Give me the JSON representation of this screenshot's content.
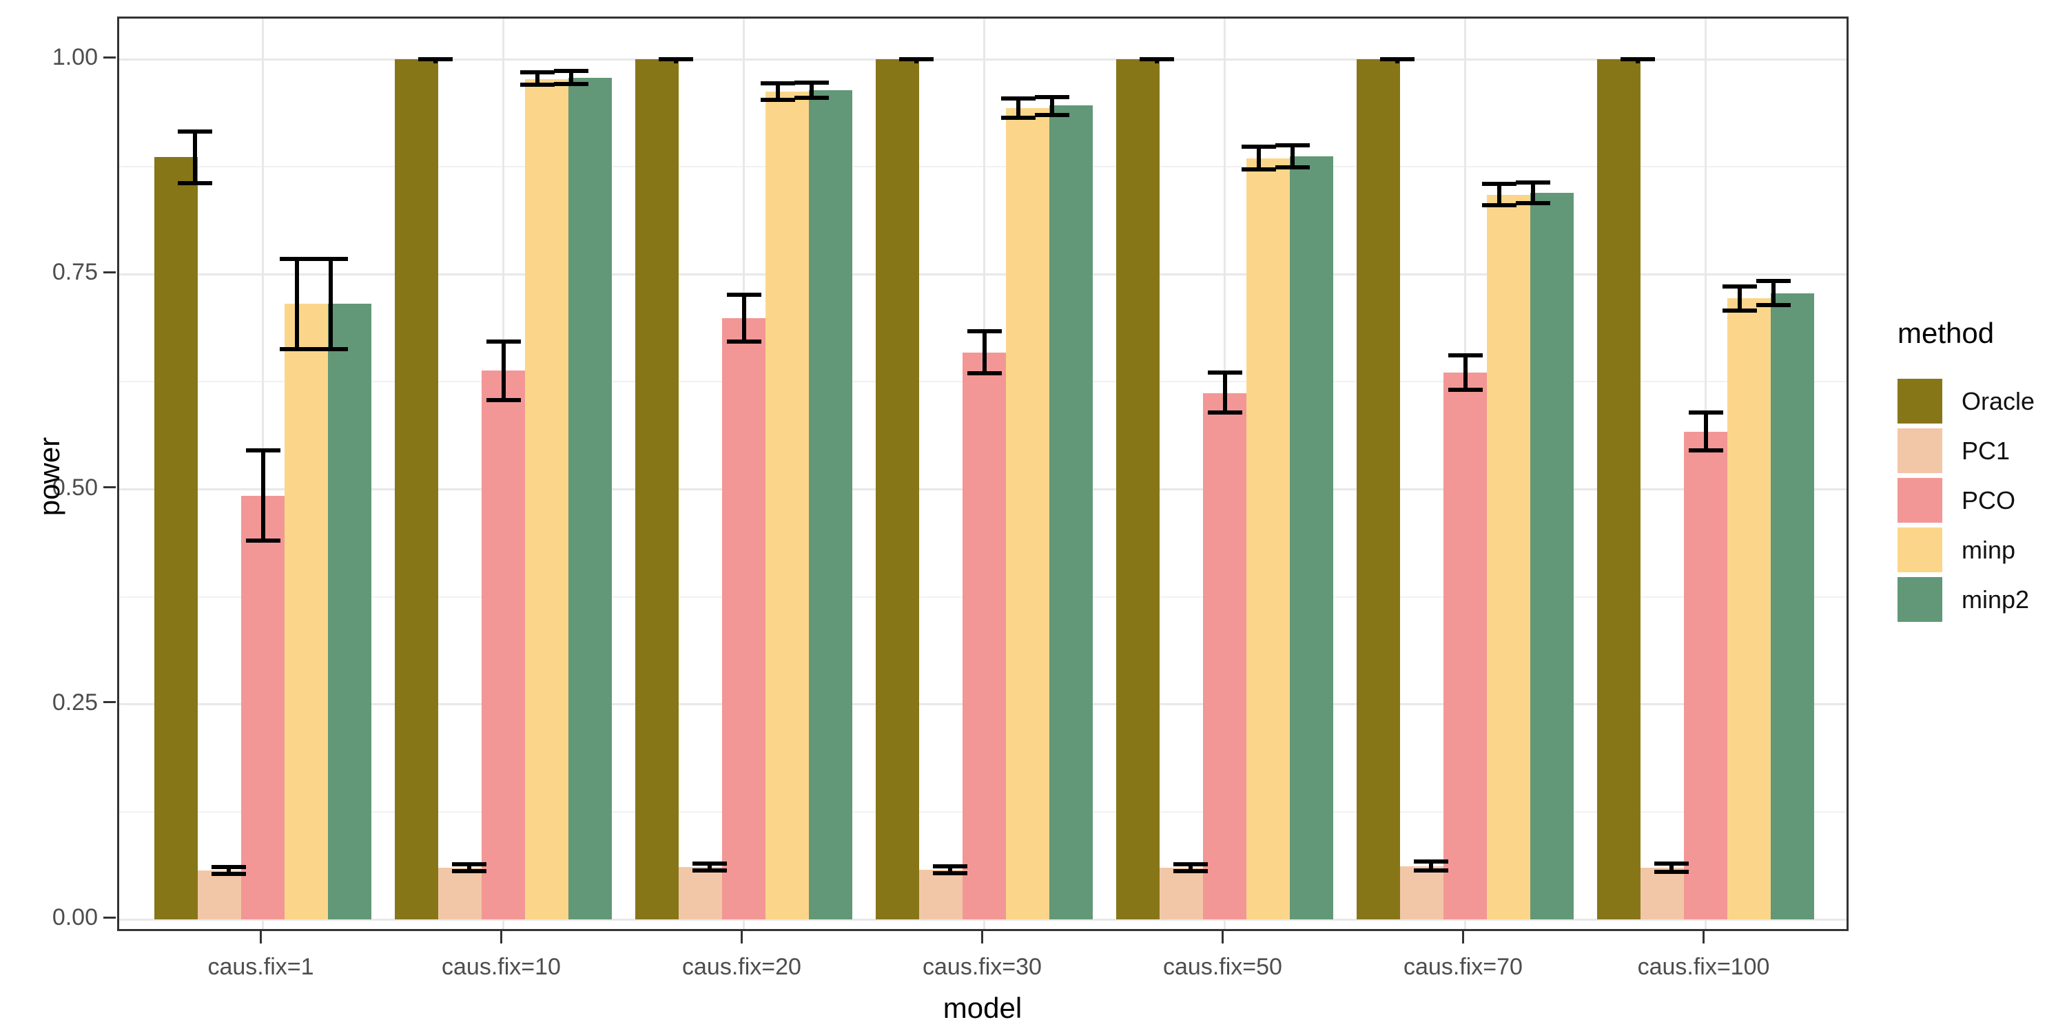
{
  "figure": {
    "kind": "ggplot-grouped-bar-chart-with-error-bars",
    "background": "#ffffff",
    "panel_border_color": "#333333",
    "gridline_major_color": "#e8e8e8",
    "gridline_minor_color": "#f1f1f1",
    "tick_color": "#333333",
    "tick_label_color": "#4d4d4d"
  },
  "chart_data": {
    "type": "bar",
    "title": "",
    "xlabel": "model",
    "ylabel": "power",
    "legend_title": "method",
    "legend_position": "right",
    "grid": "major and minor horizontal, major vertical at category centers",
    "ylim": [
      0,
      1.05
    ],
    "y_ticks": [
      0,
      0.25,
      0.5,
      0.75,
      1
    ],
    "y_tick_labels": [
      "0.00",
      "0.25",
      "0.50",
      "0.75",
      "1.00"
    ],
    "y_minor_ticks": [
      0.125,
      0.375,
      0.625,
      0.875
    ],
    "error_bar_color": "#000000",
    "categories": [
      "caus.fix=1",
      "caus.fix=10",
      "caus.fix=20",
      "caus.fix=30",
      "caus.fix=50",
      "caus.fix=70",
      "caus.fix=100"
    ],
    "series": [
      {
        "name": "Oracle",
        "color": "#877618",
        "values": [
          0.886,
          1.0,
          1.0,
          1.0,
          1.0,
          1.0,
          1.0
        ],
        "error_low": [
          0.856,
          1.0,
          1.0,
          1.0,
          1.0,
          1.0,
          1.0
        ],
        "error_high": [
          0.916,
          1.0,
          1.0,
          1.0,
          1.0,
          1.0,
          1.0
        ]
      },
      {
        "name": "PC1",
        "color": "#F2C7A7",
        "values": [
          0.057,
          0.06,
          0.061,
          0.058,
          0.06,
          0.062,
          0.06
        ],
        "error_low": [
          0.053,
          0.056,
          0.057,
          0.054,
          0.056,
          0.057,
          0.055
        ],
        "error_high": [
          0.061,
          0.064,
          0.065,
          0.062,
          0.064,
          0.067,
          0.065
        ]
      },
      {
        "name": "PCO",
        "color": "#F29795",
        "values": [
          0.492,
          0.638,
          0.699,
          0.659,
          0.612,
          0.636,
          0.567
        ],
        "error_low": [
          0.44,
          0.604,
          0.672,
          0.635,
          0.589,
          0.616,
          0.545
        ],
        "error_high": [
          0.545,
          0.672,
          0.726,
          0.684,
          0.636,
          0.656,
          0.589
        ]
      },
      {
        "name": "minp",
        "color": "#FBD68A",
        "values": [
          0.716,
          0.977,
          0.962,
          0.943,
          0.885,
          0.842,
          0.722
        ],
        "error_low": [
          0.663,
          0.97,
          0.953,
          0.932,
          0.872,
          0.83,
          0.708
        ],
        "error_high": [
          0.768,
          0.985,
          0.972,
          0.954,
          0.898,
          0.855,
          0.736
        ]
      },
      {
        "name": "minp2",
        "color": "#629877",
        "values": [
          0.716,
          0.978,
          0.964,
          0.946,
          0.887,
          0.845,
          0.728
        ],
        "error_low": [
          0.663,
          0.971,
          0.955,
          0.935,
          0.874,
          0.833,
          0.714
        ],
        "error_high": [
          0.768,
          0.986,
          0.973,
          0.956,
          0.9,
          0.857,
          0.742
        ]
      }
    ]
  }
}
